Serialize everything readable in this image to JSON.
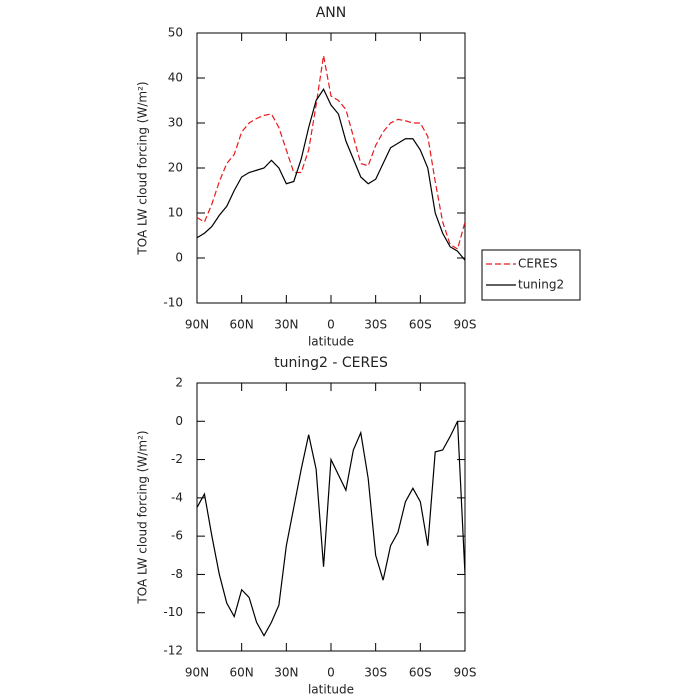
{
  "chart_data": [
    {
      "type": "line",
      "title": "ANN",
      "xlabel": "latitude",
      "ylabel": "TOA LW cloud forcing (W/m²)",
      "x": [
        90,
        85,
        80,
        75,
        70,
        65,
        60,
        55,
        50,
        45,
        40,
        35,
        30,
        25,
        20,
        15,
        10,
        5,
        0,
        -5,
        -10,
        -15,
        -20,
        -25,
        -30,
        -35,
        -40,
        -45,
        -50,
        -55,
        -60,
        -65,
        -70,
        -75,
        -80,
        -85,
        -90
      ],
      "series": [
        {
          "name": "CERES",
          "color": "#e8191c",
          "style": "dashed",
          "values": [
            9,
            8,
            12,
            17,
            21,
            23,
            28,
            30,
            31,
            31.7,
            32,
            29,
            24,
            19,
            19,
            24,
            34,
            45,
            36,
            35,
            33,
            27,
            21,
            20.5,
            25,
            28,
            30,
            30.8,
            30.5,
            30,
            30,
            27,
            17,
            8,
            3,
            2,
            8
          ]
        },
        {
          "name": "tuning2",
          "color": "#000000",
          "style": "solid",
          "values": [
            4.5,
            5.5,
            7,
            9.5,
            11.5,
            15,
            18,
            19,
            19.5,
            20,
            21.7,
            20,
            16.5,
            17,
            22,
            29,
            35,
            37.5,
            34,
            32,
            26,
            22,
            18,
            16.5,
            17.5,
            21,
            24.5,
            25.5,
            26.5,
            26.5,
            24,
            20,
            10,
            5.5,
            2.5,
            1.5,
            -0.5
          ]
        }
      ],
      "xlim": [
        90,
        -90
      ],
      "xticks": [
        {
          "value": 90,
          "label": "90N"
        },
        {
          "value": 60,
          "label": "60N"
        },
        {
          "value": 30,
          "label": "30N"
        },
        0,
        {
          "value": -30,
          "label": "30S"
        },
        {
          "value": -60,
          "label": "60S"
        },
        {
          "value": -90,
          "label": "90S"
        }
      ],
      "ylim": [
        -10,
        50
      ],
      "yticks": [
        -10,
        0,
        10,
        20,
        30,
        40,
        50
      ],
      "legend": "right"
    },
    {
      "type": "line",
      "title": "tuning2 - CERES",
      "xlabel": "latitude",
      "ylabel": "TOA LW cloud forcing (W/m²)",
      "x": [
        90,
        85,
        80,
        75,
        70,
        65,
        60,
        55,
        50,
        45,
        40,
        35,
        30,
        25,
        20,
        15,
        10,
        5,
        0,
        -5,
        -10,
        -15,
        -20,
        -25,
        -30,
        -35,
        -40,
        -45,
        -50,
        -55,
        -60,
        -65,
        -70,
        -75,
        -80,
        -85,
        -90
      ],
      "series": [
        {
          "color": "#000000",
          "style": "solid",
          "values": [
            -4.5,
            -3.8,
            -6,
            -8,
            -9.5,
            -10.2,
            -8.8,
            -9.2,
            -10.5,
            -11.2,
            -10.5,
            -9.6,
            -6.5,
            -4.5,
            -2.5,
            -0.7,
            -2.5,
            -7.6,
            -2,
            -2.8,
            -3.6,
            -1.5,
            -0.6,
            -3,
            -7,
            -8.3,
            -6.5,
            -5.8,
            -4.2,
            -3.5,
            -4.2,
            -6.5,
            -1.6,
            -1.5,
            -0.8,
            0,
            -8
          ]
        }
      ],
      "xlim": [
        90,
        -90
      ],
      "xticks": [
        {
          "value": 90,
          "label": "90N"
        },
        {
          "value": 60,
          "label": "60N"
        },
        {
          "value": 30,
          "label": "30N"
        },
        0,
        {
          "value": -30,
          "label": "30S"
        },
        {
          "value": -60,
          "label": "60S"
        },
        {
          "value": -90,
          "label": "90S"
        }
      ],
      "ylim": [
        -12,
        2
      ],
      "yticks": [
        -12,
        -10,
        -8,
        -6,
        -4,
        -2,
        0,
        2
      ]
    }
  ]
}
